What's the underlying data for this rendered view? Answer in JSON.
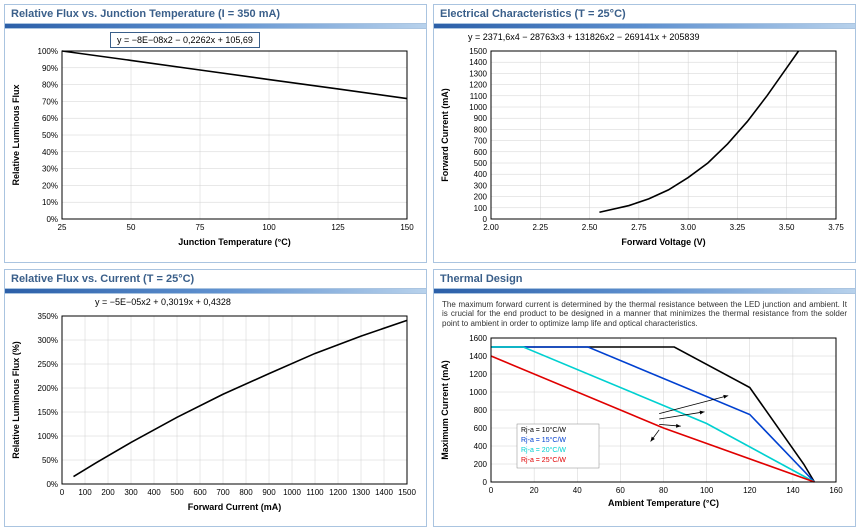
{
  "panels": {
    "flux_temp": {
      "title": "Relative Flux vs. Junction Temperature (I = 350 mA)",
      "title_sub": "F",
      "equation": "y = −8E−08x2 − 0,2262x + 105,69",
      "xlabel": "Junction Temperature (°C)",
      "ylabel": "Relative Luminous Flux",
      "xlim": [
        25,
        150
      ],
      "ylim": [
        0,
        100
      ],
      "xticks": [
        25,
        50,
        75,
        100,
        125,
        150
      ],
      "yticks": [
        0,
        10,
        20,
        30,
        40,
        50,
        60,
        70,
        80,
        90,
        100
      ],
      "ytick_labels": [
        "0%",
        "10%",
        "20%",
        "30%",
        "40%",
        "50%",
        "60%",
        "70%",
        "80%",
        "90%",
        "100%"
      ],
      "curve": [
        [
          25,
          100
        ],
        [
          50,
          94.4
        ],
        [
          75,
          88.7
        ],
        [
          100,
          83.0
        ],
        [
          125,
          77.4
        ],
        [
          150,
          71.7
        ]
      ],
      "grid_color": "#d0d0d0",
      "curve_color": "#000000"
    },
    "iv": {
      "title": "Electrical Characteristics (T = 25°C)",
      "title_sub": "J",
      "equation": "y = 2371,6x4 − 28763x3 + 131826x2 − 269141x + 205839",
      "xlabel": "Forward Voltage (V)",
      "ylabel": "Forward Current (mA)",
      "xlim": [
        2.0,
        3.75
      ],
      "ylim": [
        0,
        1500
      ],
      "xticks": [
        2.0,
        2.25,
        2.5,
        2.75,
        3.0,
        3.25,
        3.5,
        3.75
      ],
      "yticks": [
        0,
        100,
        200,
        300,
        400,
        500,
        600,
        700,
        800,
        900,
        1000,
        1100,
        1200,
        1300,
        1400,
        1500
      ],
      "curve": [
        [
          2.55,
          60
        ],
        [
          2.7,
          120
        ],
        [
          2.8,
          180
        ],
        [
          2.9,
          260
        ],
        [
          3.0,
          370
        ],
        [
          3.1,
          500
        ],
        [
          3.2,
          670
        ],
        [
          3.3,
          870
        ],
        [
          3.4,
          1100
        ],
        [
          3.5,
          1350
        ],
        [
          3.56,
          1500
        ]
      ],
      "grid_color": "#d0d0d0",
      "curve_color": "#000000"
    },
    "flux_current": {
      "title": "Relative Flux vs. Current (T = 25°C)",
      "title_sub": "J",
      "equation": "y = −5E−05x2 + 0,3019x + 0,4328",
      "xlabel": "Forward Current (mA)",
      "ylabel": "Relative Luminous Flux (%)",
      "xlim": [
        0,
        1500
      ],
      "ylim": [
        0,
        350
      ],
      "xticks": [
        0,
        100,
        200,
        300,
        400,
        500,
        600,
        700,
        800,
        900,
        1000,
        1100,
        1200,
        1300,
        1400,
        1500
      ],
      "yticks": [
        0,
        50,
        100,
        150,
        200,
        250,
        300,
        350
      ],
      "ytick_labels": [
        "0%",
        "50%",
        "100%",
        "150%",
        "200%",
        "250%",
        "300%",
        "350%"
      ],
      "curve": [
        [
          50,
          15.4
        ],
        [
          150,
          44.6
        ],
        [
          300,
          86.5
        ],
        [
          500,
          139
        ],
        [
          700,
          187
        ],
        [
          900,
          230
        ],
        [
          1100,
          272
        ],
        [
          1300,
          308
        ],
        [
          1500,
          341
        ]
      ],
      "grid_color": "#d0d0d0",
      "curve_color": "#000000"
    },
    "thermal": {
      "title": "Thermal Design",
      "body_text": "The maximum forward current is determined by the thermal resistance between the LED junction and ambient. It is crucial for the end product to be designed in a manner that minimizes the thermal resistance from the solder point to ambient in order to optimize lamp life and optical characteristics.",
      "xlabel": "Ambient Temperature (°C)",
      "ylabel": "Maximum Current (mA)",
      "xlim": [
        0,
        160
      ],
      "ylim": [
        0,
        1600
      ],
      "xticks": [
        0,
        20,
        40,
        60,
        80,
        100,
        120,
        140,
        160
      ],
      "yticks": [
        0,
        200,
        400,
        600,
        800,
        1000,
        1200,
        1400,
        1600
      ],
      "series": [
        {
          "label": "Rj-a = 10°C/W",
          "color": "#000000",
          "pts": [
            [
              0,
              1500
            ],
            [
              85,
              1500
            ],
            [
              120,
              1050
            ],
            [
              145,
              200
            ],
            [
              150,
              0
            ]
          ]
        },
        {
          "label": "Rj-a = 15°C/W",
          "color": "#0040d0",
          "pts": [
            [
              0,
              1500
            ],
            [
              45,
              1500
            ],
            [
              120,
              750
            ],
            [
              150,
              0
            ]
          ]
        },
        {
          "label": "Rj-a = 20°C/W",
          "color": "#00d0d0",
          "pts": [
            [
              0,
              1500
            ],
            [
              15,
              1500
            ],
            [
              100,
              650
            ],
            [
              150,
              0
            ]
          ]
        },
        {
          "label": "Rj-a = 25°C/W",
          "color": "#e00000",
          "pts": [
            [
              0,
              1400
            ],
            [
              80,
              600
            ],
            [
              150,
              0
            ]
          ]
        }
      ],
      "arrows": [
        {
          "from": [
            78,
            760
          ],
          "to": [
            110,
            960
          ]
        },
        {
          "from": [
            78,
            700
          ],
          "to": [
            99,
            780
          ]
        },
        {
          "from": [
            78,
            640
          ],
          "to": [
            88,
            620
          ]
        },
        {
          "from": [
            78,
            580
          ],
          "to": [
            74,
            450
          ]
        }
      ],
      "grid_color": "#d8d8d8"
    }
  }
}
